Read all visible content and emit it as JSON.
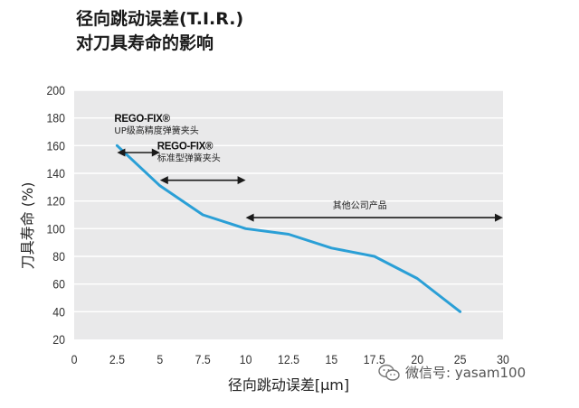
{
  "title_line1": "径向跳动误差(T.I.R.)",
  "title_line2": "对刀具寿命的影响",
  "watermark": {
    "text": "微信号: yasam100",
    "icon": "wechat-icon"
  },
  "chart_data": {
    "type": "line",
    "title": "径向跳动误差(T.I.R.) 对刀具寿命的影响",
    "xlabel": "径向跳动误差[μm]",
    "ylabel": "刀具寿命 (%)",
    "xlim": [
      0,
      30
    ],
    "ylim": [
      20,
      200
    ],
    "x_ticks": [
      0,
      2.5,
      5,
      7.5,
      10,
      12.5,
      15,
      17.5,
      20,
      25,
      30
    ],
    "x_tick_labels": [
      "0",
      "2.5",
      "5",
      "7.5",
      "10",
      "12.5",
      "15",
      "17.5",
      "20",
      "25",
      "30"
    ],
    "y_ticks": [
      20,
      40,
      60,
      80,
      100,
      120,
      140,
      160,
      180,
      200
    ],
    "y_tick_labels": [
      "20",
      "40",
      "60",
      "80",
      "100",
      "120",
      "140",
      "160",
      "180",
      "200"
    ],
    "grid": "horizontal",
    "line_color": "#2a9fd6",
    "series": [
      {
        "x": [
          2.5,
          5,
          7.5,
          10,
          12.5,
          15,
          17.5,
          20,
          25
        ],
        "y": [
          160,
          131,
          110,
          100,
          96,
          86,
          80,
          64,
          40
        ]
      }
    ],
    "annotations": [
      {
        "brand": "REGO-FIX®",
        "label": "UP级高精度弹簧夹头",
        "x_range": [
          2.5,
          5
        ],
        "y": 155
      },
      {
        "brand": "REGO-FIX®",
        "label": "标准型弹簧夹头",
        "x_range": [
          5,
          10
        ],
        "y": 135
      },
      {
        "brand": "",
        "label": "其他公司产品",
        "x_range": [
          10,
          30
        ],
        "y": 108
      }
    ]
  }
}
